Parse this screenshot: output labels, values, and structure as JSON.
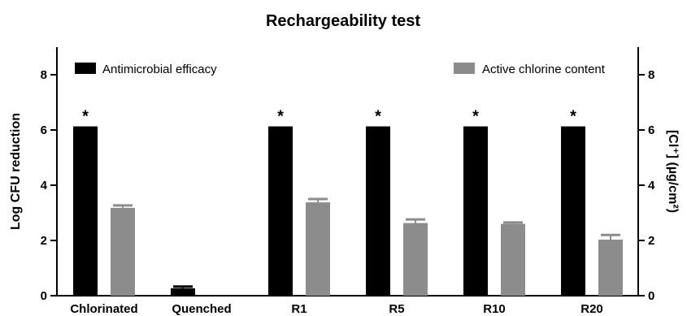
{
  "chart_data": {
    "type": "bar",
    "title": "Rechargeability test",
    "categories": [
      "Chlorinated",
      "Quenched",
      "R1",
      "R5",
      "R10",
      "R20"
    ],
    "ylabel": "Log CFU reduction",
    "y2label": "[Cl⁺] (µg/cm²)",
    "ylim": [
      0,
      9
    ],
    "yticks": [
      0,
      2,
      4,
      6,
      8
    ],
    "y2lim": [
      0,
      9
    ],
    "y2ticks": [
      0,
      2,
      4,
      6,
      8
    ],
    "legend_placement": "top",
    "grid": false,
    "significance_marker": "*",
    "significant": [
      true,
      false,
      true,
      true,
      true,
      true
    ],
    "series": [
      {
        "name": "Antimicrobial efficacy",
        "axis": "left",
        "color": "#000000",
        "values": [
          6.13,
          0.27,
          6.13,
          6.13,
          6.13,
          6.13
        ],
        "errors": [
          0,
          0.06,
          0,
          0,
          0,
          0
        ]
      },
      {
        "name": "Active chlorine content",
        "axis": "right",
        "color": "#8c8c8c",
        "values": [
          3.18,
          null,
          3.38,
          2.63,
          2.6,
          2.03
        ],
        "errors": [
          0.09,
          null,
          0.12,
          0.13,
          0.05,
          0.17
        ]
      }
    ]
  }
}
